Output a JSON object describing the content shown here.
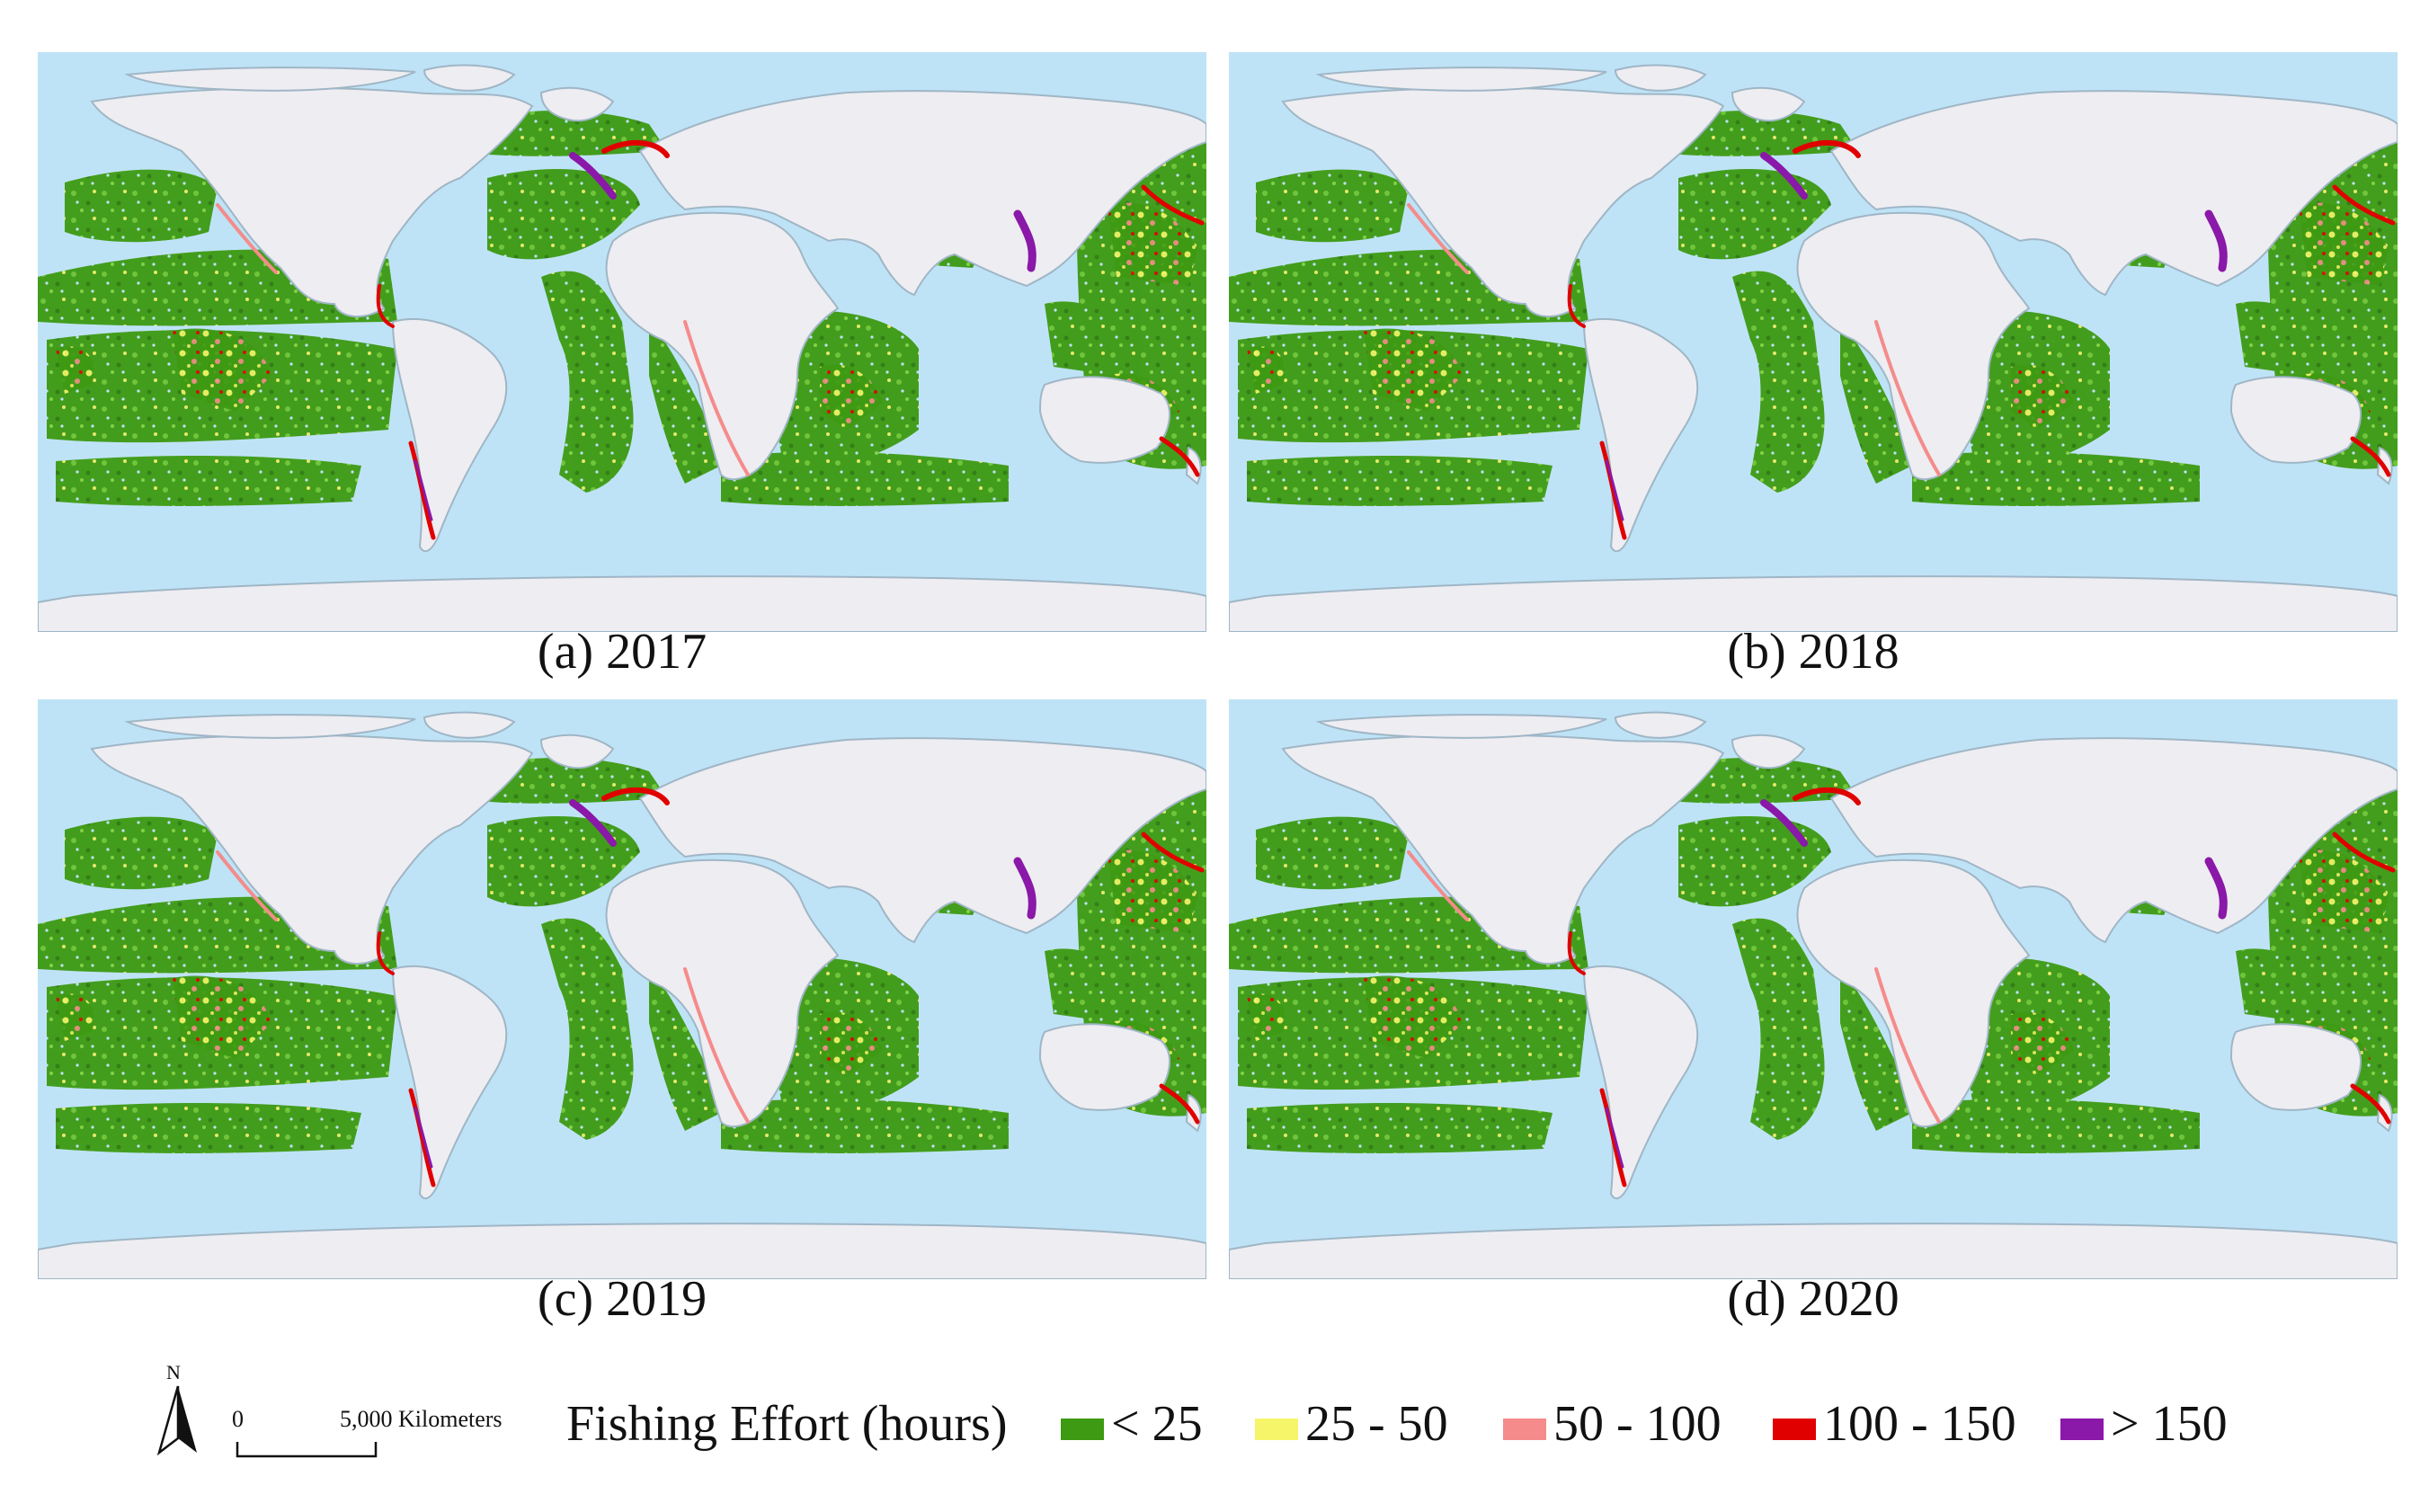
{
  "panels": [
    {
      "id": "a",
      "caption": "(a) 2017"
    },
    {
      "id": "b",
      "caption": "(b) 2018"
    },
    {
      "id": "c",
      "caption": "(c) 2019"
    },
    {
      "id": "d",
      "caption": "(d) 2020"
    }
  ],
  "north_arrow": {
    "label": "N"
  },
  "scale_bar": {
    "zero": "0",
    "end": "5,000 Kilometers"
  },
  "legend": {
    "title": "Fishing Effort (hours)",
    "classes": [
      {
        "label": "< 25",
        "color": "#3d9a12"
      },
      {
        "label": "25 - 50",
        "color": "#f6f56a"
      },
      {
        "label": "50 - 100",
        "color": "#f58b8b"
      },
      {
        "label": "100 - 150",
        "color": "#e00000"
      },
      {
        "label": "> 150",
        "color": "#8a18a8"
      }
    ]
  },
  "colors": {
    "ocean": "#bfe3f6",
    "land": "#eeedf1",
    "coast": "#9fb6c6"
  }
}
